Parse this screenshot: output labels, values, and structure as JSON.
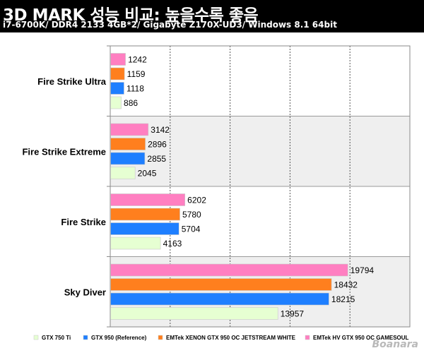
{
  "title": "3D MARK 성능 비교: 높을수록 좋음",
  "subtitle": "i7-6700K/ DDR4 2133 4GB*2/ Gigabyte Z170X-UD3/ Windows 8.1 64bit",
  "watermark": "Boanara",
  "chart_data": {
    "type": "bar",
    "orientation": "horizontal",
    "categories": [
      "Fire Strike Ultra",
      "Fire Strike Extreme",
      "Fire Strike",
      "Sky Diver"
    ],
    "series": [
      {
        "name": "EMTek HV GTX 950 OC GAMESOUL",
        "color": "#ff7fc1",
        "values": [
          1242,
          3142,
          6202,
          19794
        ]
      },
      {
        "name": "EMTek XENON GTX 950 OC JETSTREAM WHITE",
        "color": "#ff7f1e",
        "values": [
          1159,
          2896,
          5780,
          18432
        ]
      },
      {
        "name": "GTX 950 (Reference)",
        "color": "#1e7fff",
        "values": [
          1118,
          2855,
          5704,
          18215
        ]
      },
      {
        "name": "GTX 750 Ti",
        "color": "#e6ffd2",
        "values": [
          886,
          2045,
          4163,
          13957
        ]
      }
    ],
    "legend_order": [
      "GTX 750 Ti",
      "GTX 950 (Reference)",
      "EMTek XENON GTX 950 OC JETSTREAM WHITE",
      "EMTek HV GTX 950 OC GAMESOUL"
    ],
    "xlim": [
      0,
      25000
    ],
    "grid": "vertical dashed",
    "legend_position": "bottom",
    "alternating_bands": [
      "#ffffff",
      "#efefef"
    ]
  }
}
